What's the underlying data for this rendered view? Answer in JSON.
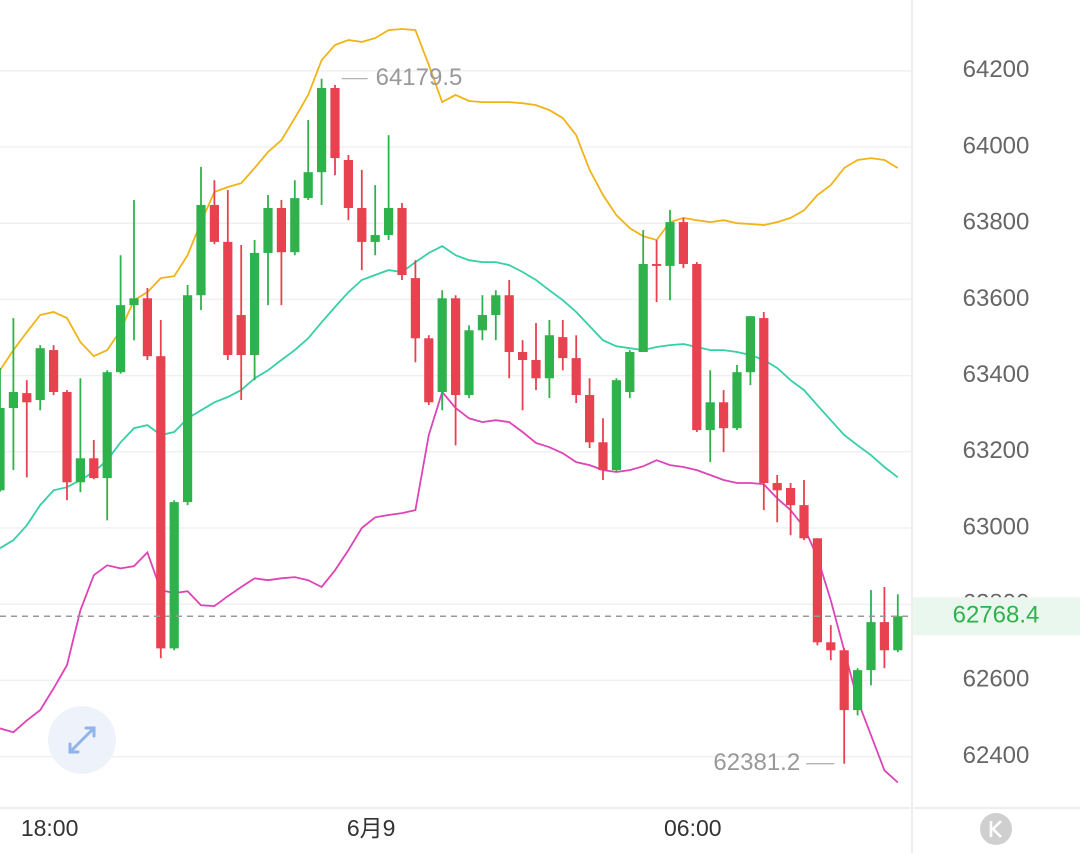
{
  "chart_data": {
    "type": "candlestick",
    "categories": [
      null,
      null,
      null,
      null,
      "18:00",
      null,
      null,
      null,
      null,
      null,
      null,
      null,
      null,
      null,
      null,
      null,
      null,
      null,
      null,
      null,
      null,
      null,
      null,
      null,
      null,
      null,
      null,
      null,
      "6月9",
      null,
      null,
      null,
      null,
      null,
      null,
      null,
      null,
      null,
      null,
      null,
      null,
      null,
      null,
      null,
      null,
      null,
      null,
      null,
      null,
      null,
      null,
      null,
      "06:00",
      null,
      null,
      null,
      null,
      null,
      null,
      null,
      null,
      null,
      null,
      null,
      null,
      null,
      null,
      null
    ],
    "open": [
      63099,
      63315,
      63354,
      63336,
      63467,
      63357,
      63120,
      63183,
      63131,
      63409,
      63585,
      63603,
      63451,
      62684,
      63068,
      63611,
      63848,
      63751,
      63559,
      63454,
      63722,
      63840,
      63724,
      63866,
      63934,
      64155,
      63966,
      63840,
      63751,
      63769,
      63840,
      63656,
      63498,
      63357,
      63603,
      63349,
      63519,
      63559,
      63611,
      63462,
      63441,
      63393,
      63501,
      63446,
      63349,
      63225,
      63152,
      63357,
      63462,
      63693,
      63688,
      63803,
      63693,
      63257,
      63330,
      63262,
      63409,
      63551,
      63118,
      63105,
      63060,
      62973,
      62700,
      62679,
      62522,
      62627,
      62753,
      62679
    ],
    "high": [
      63420,
      63551,
      63388,
      63480,
      63480,
      63362,
      63393,
      63231,
      63414,
      63716,
      63861,
      63630,
      63546,
      63073,
      63638,
      63948,
      63913,
      63887,
      63743,
      63756,
      63874,
      63861,
      63913,
      64071,
      64179.5,
      64163,
      63979,
      63940,
      63900,
      64031,
      63853,
      63703,
      63506,
      63624,
      63611,
      63532,
      63611,
      63624,
      63651,
      63493,
      63538,
      63546,
      63546,
      63506,
      63393,
      63288,
      63393,
      63467,
      63782,
      63756,
      63835,
      63814,
      63698,
      63414,
      63362,
      63428,
      63556,
      63567,
      63139,
      63118,
      63126,
      62973,
      62745,
      62684,
      62632,
      62837,
      62845,
      62826
    ],
    "low": [
      63095,
      63152,
      63133,
      63309,
      63349,
      63073,
      63094,
      63128,
      63020,
      63405,
      63493,
      63441,
      62658,
      62679,
      63060,
      63572,
      63745,
      63441,
      63336,
      63388,
      63585,
      63585,
      63716,
      63861,
      63848,
      63926,
      63808,
      63677,
      63716,
      63756,
      63651,
      63435,
      63323,
      63309,
      63217,
      63341,
      63493,
      63493,
      63393,
      63309,
      63362,
      63341,
      63414,
      63328,
      63210,
      63126,
      63147,
      63341,
      63462,
      63593,
      63598,
      63682,
      63252,
      63173,
      63199,
      63257,
      63375,
      63047,
      63015,
      62981,
      62968,
      62692,
      62653,
      62381.2,
      62508,
      62587,
      62632,
      62674
    ],
    "close": [
      63315,
      63357,
      63330,
      63472,
      63357,
      63120,
      63183,
      63131,
      63409,
      63585,
      63603,
      63451,
      62684,
      63068,
      63611,
      63848,
      63751,
      63454,
      63454,
      63722,
      63840,
      63724,
      63866,
      63934,
      64155,
      63971,
      63840,
      63751,
      63769,
      63840,
      63664,
      63498,
      63330,
      63603,
      63349,
      63519,
      63559,
      63611,
      63462,
      63441,
      63393,
      63506,
      63446,
      63349,
      63225,
      63152,
      63388,
      63462,
      63693,
      63688,
      63803,
      63693,
      63257,
      63330,
      63262,
      63409,
      63556,
      63118,
      63099,
      63060,
      62973,
      62700,
      62679,
      62522,
      62627,
      62753,
      62679,
      62768.4
    ],
    "up_color": "#2fb24c",
    "down_color": "#e8414f",
    "bands": [
      {
        "color": "#f0b416",
        "values": [
          63414,
          63467,
          63514,
          63559,
          63567,
          63551,
          63488,
          63451,
          63467,
          63519,
          63598,
          63619,
          63656,
          63661,
          63716,
          63803,
          63882,
          63895,
          63905,
          63945,
          63987,
          64018,
          64076,
          64137,
          64228,
          64268,
          64281,
          64276,
          64286,
          64307,
          64310,
          64307,
          64215,
          64118,
          64137,
          64121,
          64118,
          64118,
          64118,
          64115,
          64110,
          64097,
          64076,
          64031,
          63940,
          63874,
          63821,
          63787,
          63766,
          63756,
          63803,
          63814,
          63808,
          63803,
          63808,
          63800,
          63798,
          63795,
          63803,
          63814,
          63834,
          63874,
          63900,
          63945,
          63966,
          63971,
          63966,
          63945
        ]
      },
      {
        "color": "#36cfa6",
        "values": [
          62947,
          62968,
          63007,
          63060,
          63099,
          63107,
          63126,
          63147,
          63178,
          63225,
          63262,
          63270,
          63244,
          63252,
          63288,
          63309,
          63330,
          63344,
          63362,
          63393,
          63414,
          63441,
          63467,
          63498,
          63540,
          63580,
          63619,
          63651,
          63664,
          63677,
          63672,
          63698,
          63722,
          63740,
          63716,
          63703,
          63698,
          63698,
          63690,
          63672,
          63651,
          63624,
          63598,
          63567,
          63530,
          63493,
          63477,
          63472,
          63467,
          63475,
          63480,
          63483,
          63475,
          63467,
          63467,
          63462,
          63454,
          63441,
          63420,
          63388,
          63362,
          63322,
          63283,
          63244,
          63217,
          63191,
          63160,
          63133
        ]
      },
      {
        "color": "#dd44b8",
        "values": [
          62474,
          62464,
          62495,
          62522,
          62579,
          62640,
          62784,
          62876,
          62902,
          62894,
          62900,
          62936,
          62837,
          62829,
          62834,
          62797,
          62795,
          62821,
          62845,
          62868,
          62863,
          62868,
          62871,
          62863,
          62845,
          62889,
          62942,
          63000,
          63028,
          63034,
          63039,
          63047,
          63244,
          63357,
          63315,
          63288,
          63278,
          63283,
          63278,
          63252,
          63223,
          63212,
          63196,
          63173,
          63165,
          63152,
          63147,
          63152,
          63162,
          63178,
          63165,
          63160,
          63152,
          63139,
          63126,
          63118,
          63118,
          63115,
          63078,
          63047,
          63002,
          62923,
          62810,
          62679,
          62548,
          62456,
          62364,
          62332
        ]
      }
    ],
    "last_price": 62768.4,
    "last_price_color": "#2fb24c",
    "ylim": [
      62265,
      64386
    ],
    "yticks": [
      62400,
      62600,
      62800,
      63000,
      63200,
      63400,
      63600,
      63800,
      64000,
      64200
    ],
    "grid": true
  }
}
